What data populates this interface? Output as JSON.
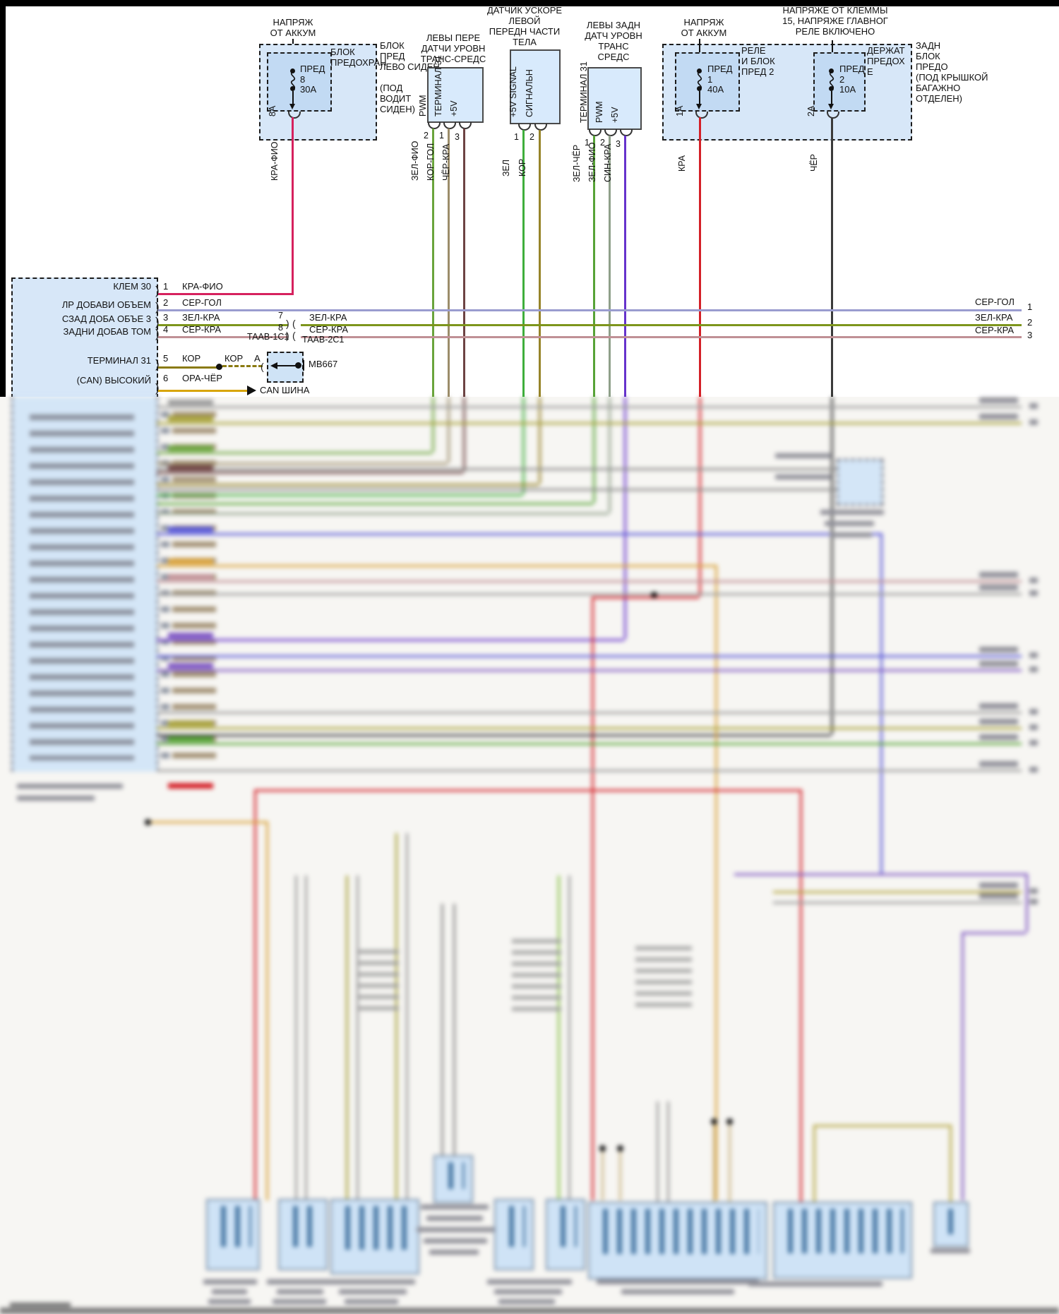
{
  "top": {
    "fuse_left": {
      "title": [
        "НАПРЯЖ",
        "ОТ АККУМ"
      ],
      "fuse": [
        "ПРЕД",
        "8",
        "30А"
      ],
      "inner_label": [
        "БЛОК",
        "ПРЕДОХРАН"
      ],
      "side_label": [
        "БЛОК",
        "ПРЕД",
        "ЛЕВО СИДЕН"
      ],
      "side_label2": [
        "(ПОД",
        "ВОДИТ",
        "СИДЕН)"
      ],
      "pin": "8А",
      "wire": "КРА-ФИО"
    },
    "sensor_front": {
      "title": [
        "ЛЕВЫ ПЕРЕ",
        "ДАТЧИ УРОВН",
        "ТРАНС-СРЕДС"
      ],
      "terminals": [
        "PWM",
        "ТЕРМИНАЛ 31",
        "+5V"
      ],
      "pins": [
        "2",
        "1",
        "3"
      ],
      "wires": [
        "ЗЕЛ-ФИО",
        "КОР-ГОЛ",
        "ЧЁР-КРА"
      ]
    },
    "accel_sensor": {
      "title": [
        "ДАТЧИК УСКОРЕ",
        "ЛЕВОЙ",
        "ПЕРЕДН ЧАСТИ",
        "ТЕЛА"
      ],
      "terminals": [
        "+5V SIGNAL",
        "СИГНАЛЬН"
      ],
      "pins": [
        "1",
        "2"
      ],
      "wires": [
        "ЗЕЛ",
        "КОР"
      ]
    },
    "sensor_rear": {
      "title": [
        "ЛЕВЫ ЗАДН",
        "ДАТЧ УРОВН",
        "ТРАНС",
        "СРЕДС"
      ],
      "terminals": [
        "ТЕРМИНАЛ 31",
        "PWM",
        "+5V"
      ],
      "pins": [
        "1",
        "2",
        "3"
      ],
      "wires": [
        "ЗЕЛ-ЧЁР",
        "ЗЕЛ-ФИО",
        "СИН-КРА"
      ]
    },
    "fuse_right": {
      "titleA": [
        "НАПРЯЖ",
        "ОТ АККУМ"
      ],
      "titleB": [
        "НАПРЯЖЕ ОТ КЛЕММЫ",
        "15, НАПРЯЖЕ ГЛАВНОГ",
        "РЕЛЕ ВКЛЮЧЕНО"
      ],
      "fuseA": [
        "ПРЕД",
        "1",
        "40А"
      ],
      "labelA": [
        "РЕЛЕ",
        "И БЛОК",
        "ПРЕД 2"
      ],
      "fuseB": [
        "ПРЕД",
        "2",
        "10А"
      ],
      "labelB": [
        "ДЕРЖАТ",
        "ПРЕДОХ",
        "Е"
      ],
      "side_label": [
        "ЗАДН",
        "БЛОК",
        "ПРЕДО",
        "(ПОД КРЫШКОЙ",
        "БАГАЖНО",
        "ОТДЕЛЕН)"
      ],
      "pinA": "1А",
      "pinB": "2А",
      "wireA": "КРА",
      "wireB": "ЧЁР"
    }
  },
  "ecu": {
    "rows": [
      {
        "pin": "1",
        "name": "КЛЕМ 30",
        "wire": "КРА-ФИО"
      },
      {
        "pin": "2",
        "name": "ЛР ДОБАВИ ОБЪЕМ",
        "wire": "СЕР-ГОЛ"
      },
      {
        "pin": "3",
        "name": "СЗАД ДОБА ОБЪЕ 3",
        "wire": "ЗЕЛ-КРА",
        "splice": "7",
        "wire2": "ЗЕЛ-КРА"
      },
      {
        "pin": "4",
        "name": "ЗАДНИ ДОБАВ ТОМ",
        "wire": "СЕР-КРА",
        "splice": "8",
        "wire2": "СЕР-КРА"
      },
      {
        "pin": "5",
        "name": "ТЕРМИНАЛ 31",
        "wire": "КОР",
        "wire2": "КОР",
        "tag": "А",
        "module": "МВ667"
      },
      {
        "pin": "6",
        "name": "(CAN) ВЫСОКИЙ",
        "wire": "ОРА-ЧЁР",
        "bus": "CAN ШИНА"
      }
    ],
    "splice_conn_left": "ТААВ-1С1",
    "splice_conn_right": "ТААВ-2С1"
  },
  "right_exits": [
    {
      "wire": "СЕР-ГОЛ",
      "pin": "1"
    },
    {
      "wire": "ЗЕЛ-КРА",
      "pin": "2"
    },
    {
      "wire": "СЕР-КРА",
      "pin": "3"
    }
  ],
  "colors": {
    "kra_fio": "#d6215e",
    "ser_gol": "#9a9ccf",
    "zel_kra": "#7d951c",
    "ser_kra": "#c09095",
    "kor": "#8a7a10",
    "ora_cher": "#d8a50a",
    "zel_fio": "#6aa43c",
    "kor_gol": "#9c8d6a",
    "cher_kra": "#6d4343",
    "zel": "#3fae3c",
    "kor2": "#97842a",
    "zel_cher": "#57a337",
    "zel_fio2": "#8fa08a",
    "sin_kra": "#6633cc",
    "kra": "#d42027",
    "cher": "#3a3a3a",
    "box_fill": "#d7e7f8"
  }
}
